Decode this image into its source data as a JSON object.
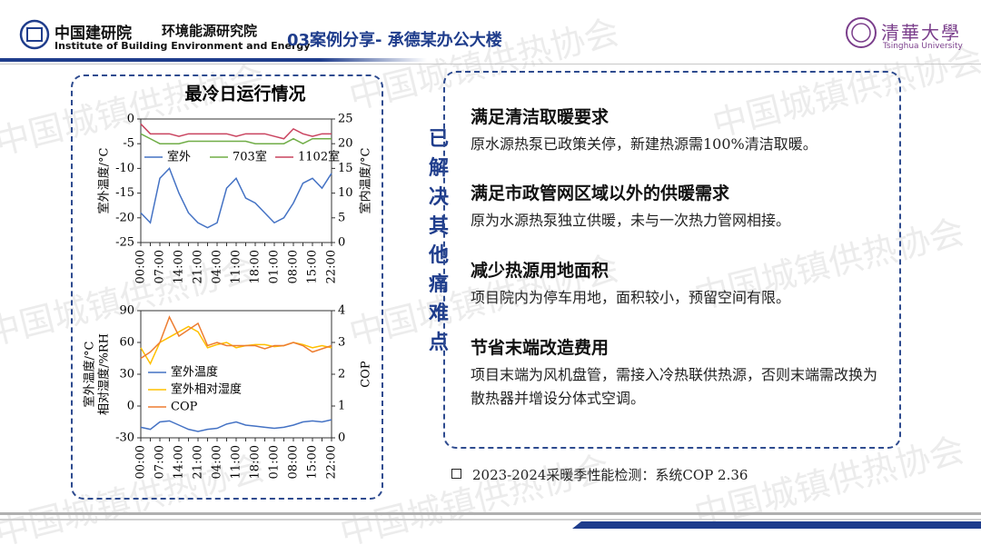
{
  "header": {
    "org_cn": "中国建研院",
    "org_en": "Institute of Building Environment and Energy",
    "dept": "环境能源研究院",
    "title": "03案例分享- 承德某办公大楼",
    "univ_cn": "清華大學",
    "univ_en": "Tsinghua University"
  },
  "watermark": "中国城镇供热协会",
  "side_label": "已解决其他痛难点",
  "items": [
    {
      "title": "满足清洁取暖要求",
      "text": "原水源热泵已政策关停，新建热源需100%清洁取暖。"
    },
    {
      "title": "满足市政管网区域以外的供暖需求",
      "text": "原为水源热泵独立供暖，未与一次热力管网相接。"
    },
    {
      "title": "减少热源用地面积",
      "text": "项目院内为停车用地，面积较小，预留空间有限。"
    },
    {
      "title": "节省末端改造费用",
      "text": "项目末端为风机盘管，需接入冷热联供热源，否则末端需改换为散热器并增设分体式空调。"
    }
  ],
  "footer": "2023-2024采暖季性能检测：系统COP 2.36",
  "chart_data": [
    {
      "type": "line",
      "title": "最冷日运行情况",
      "categories": [
        "00:00",
        null,
        "07:00",
        null,
        "14:00",
        null,
        "21:00",
        null,
        "04:00",
        null,
        "11:00",
        null,
        "18:00",
        null,
        "01:00",
        null,
        "08:00",
        null,
        "15:00",
        null,
        "22:00"
      ],
      "ylabel": [
        "室外温度/°C"
      ],
      "y2label": "室内温度/°C",
      "ylim": [
        -25,
        0
      ],
      "yticks": [
        -25,
        -20,
        -15,
        -10,
        -5,
        0
      ],
      "y2lim": [
        0,
        25
      ],
      "y2ticks": [
        0,
        5,
        10,
        15,
        20,
        25
      ],
      "legend": "upper center",
      "series": [
        {
          "name": "室外",
          "color": "#4472c4",
          "values": [
            -19,
            -21,
            -12,
            -10,
            -15,
            -19,
            -21,
            -22,
            -21,
            -14,
            -12,
            -16,
            -17,
            -19,
            -21,
            -20,
            -17,
            -13,
            -12,
            -14,
            -11
          ]
        },
        {
          "name": "703室",
          "color": "#70ad47",
          "axis": "y2",
          "values": [
            22,
            21,
            20,
            20,
            20,
            20.5,
            20.5,
            20.5,
            20.5,
            20.5,
            20.5,
            20.5,
            20,
            20,
            20,
            20,
            21,
            20,
            21,
            21,
            21
          ]
        },
        {
          "name": "1102室",
          "color": "#c9435f",
          "axis": "y2",
          "values": [
            24,
            22,
            22,
            22,
            21.5,
            22,
            22,
            22,
            22,
            22,
            21.5,
            22,
            22,
            22,
            21.5,
            21,
            23,
            22,
            21.5,
            22,
            22
          ]
        }
      ]
    },
    {
      "type": "line",
      "categories": [
        "00:00",
        null,
        "07:00",
        null,
        "14:00",
        null,
        "21:00",
        null,
        "04:00",
        null,
        "11:00",
        null,
        "18:00",
        null,
        "01:00",
        null,
        "08:00",
        null,
        "15:00",
        null,
        "22:00"
      ],
      "ylabel": [
        "室外温度/°C",
        "相对湿度/%RH"
      ],
      "y2label": "COP",
      "ylim": [
        -30,
        90
      ],
      "yticks": [
        -30,
        0,
        30,
        60,
        90
      ],
      "y2lim": [
        0,
        4
      ],
      "y2ticks": [
        0,
        1,
        2,
        3,
        4
      ],
      "legend": "center left",
      "series": [
        {
          "name": "室外温度",
          "color": "#4472c4",
          "values": [
            -20,
            -22,
            -15,
            -14,
            -18,
            -22,
            -24,
            -22,
            -21,
            -17,
            -15,
            -18,
            -19,
            -20,
            -21,
            -20,
            -18,
            -15,
            -14,
            -15,
            -13
          ]
        },
        {
          "name": "室外相对湿度",
          "color": "#ffc000",
          "values": [
            55,
            40,
            60,
            65,
            70,
            75,
            70,
            55,
            58,
            60,
            55,
            57,
            58,
            58,
            56,
            57,
            60,
            58,
            55,
            57,
            55
          ]
        },
        {
          "name": "COP",
          "color": "#ed7d31",
          "axis": "y2",
          "values": [
            2.5,
            2.7,
            3.0,
            3.8,
            3.2,
            3.4,
            3.6,
            2.9,
            3.0,
            2.9,
            2.9,
            2.9,
            2.9,
            2.8,
            2.9,
            2.9,
            3.0,
            2.9,
            2.7,
            2.8,
            2.9
          ]
        }
      ]
    }
  ]
}
